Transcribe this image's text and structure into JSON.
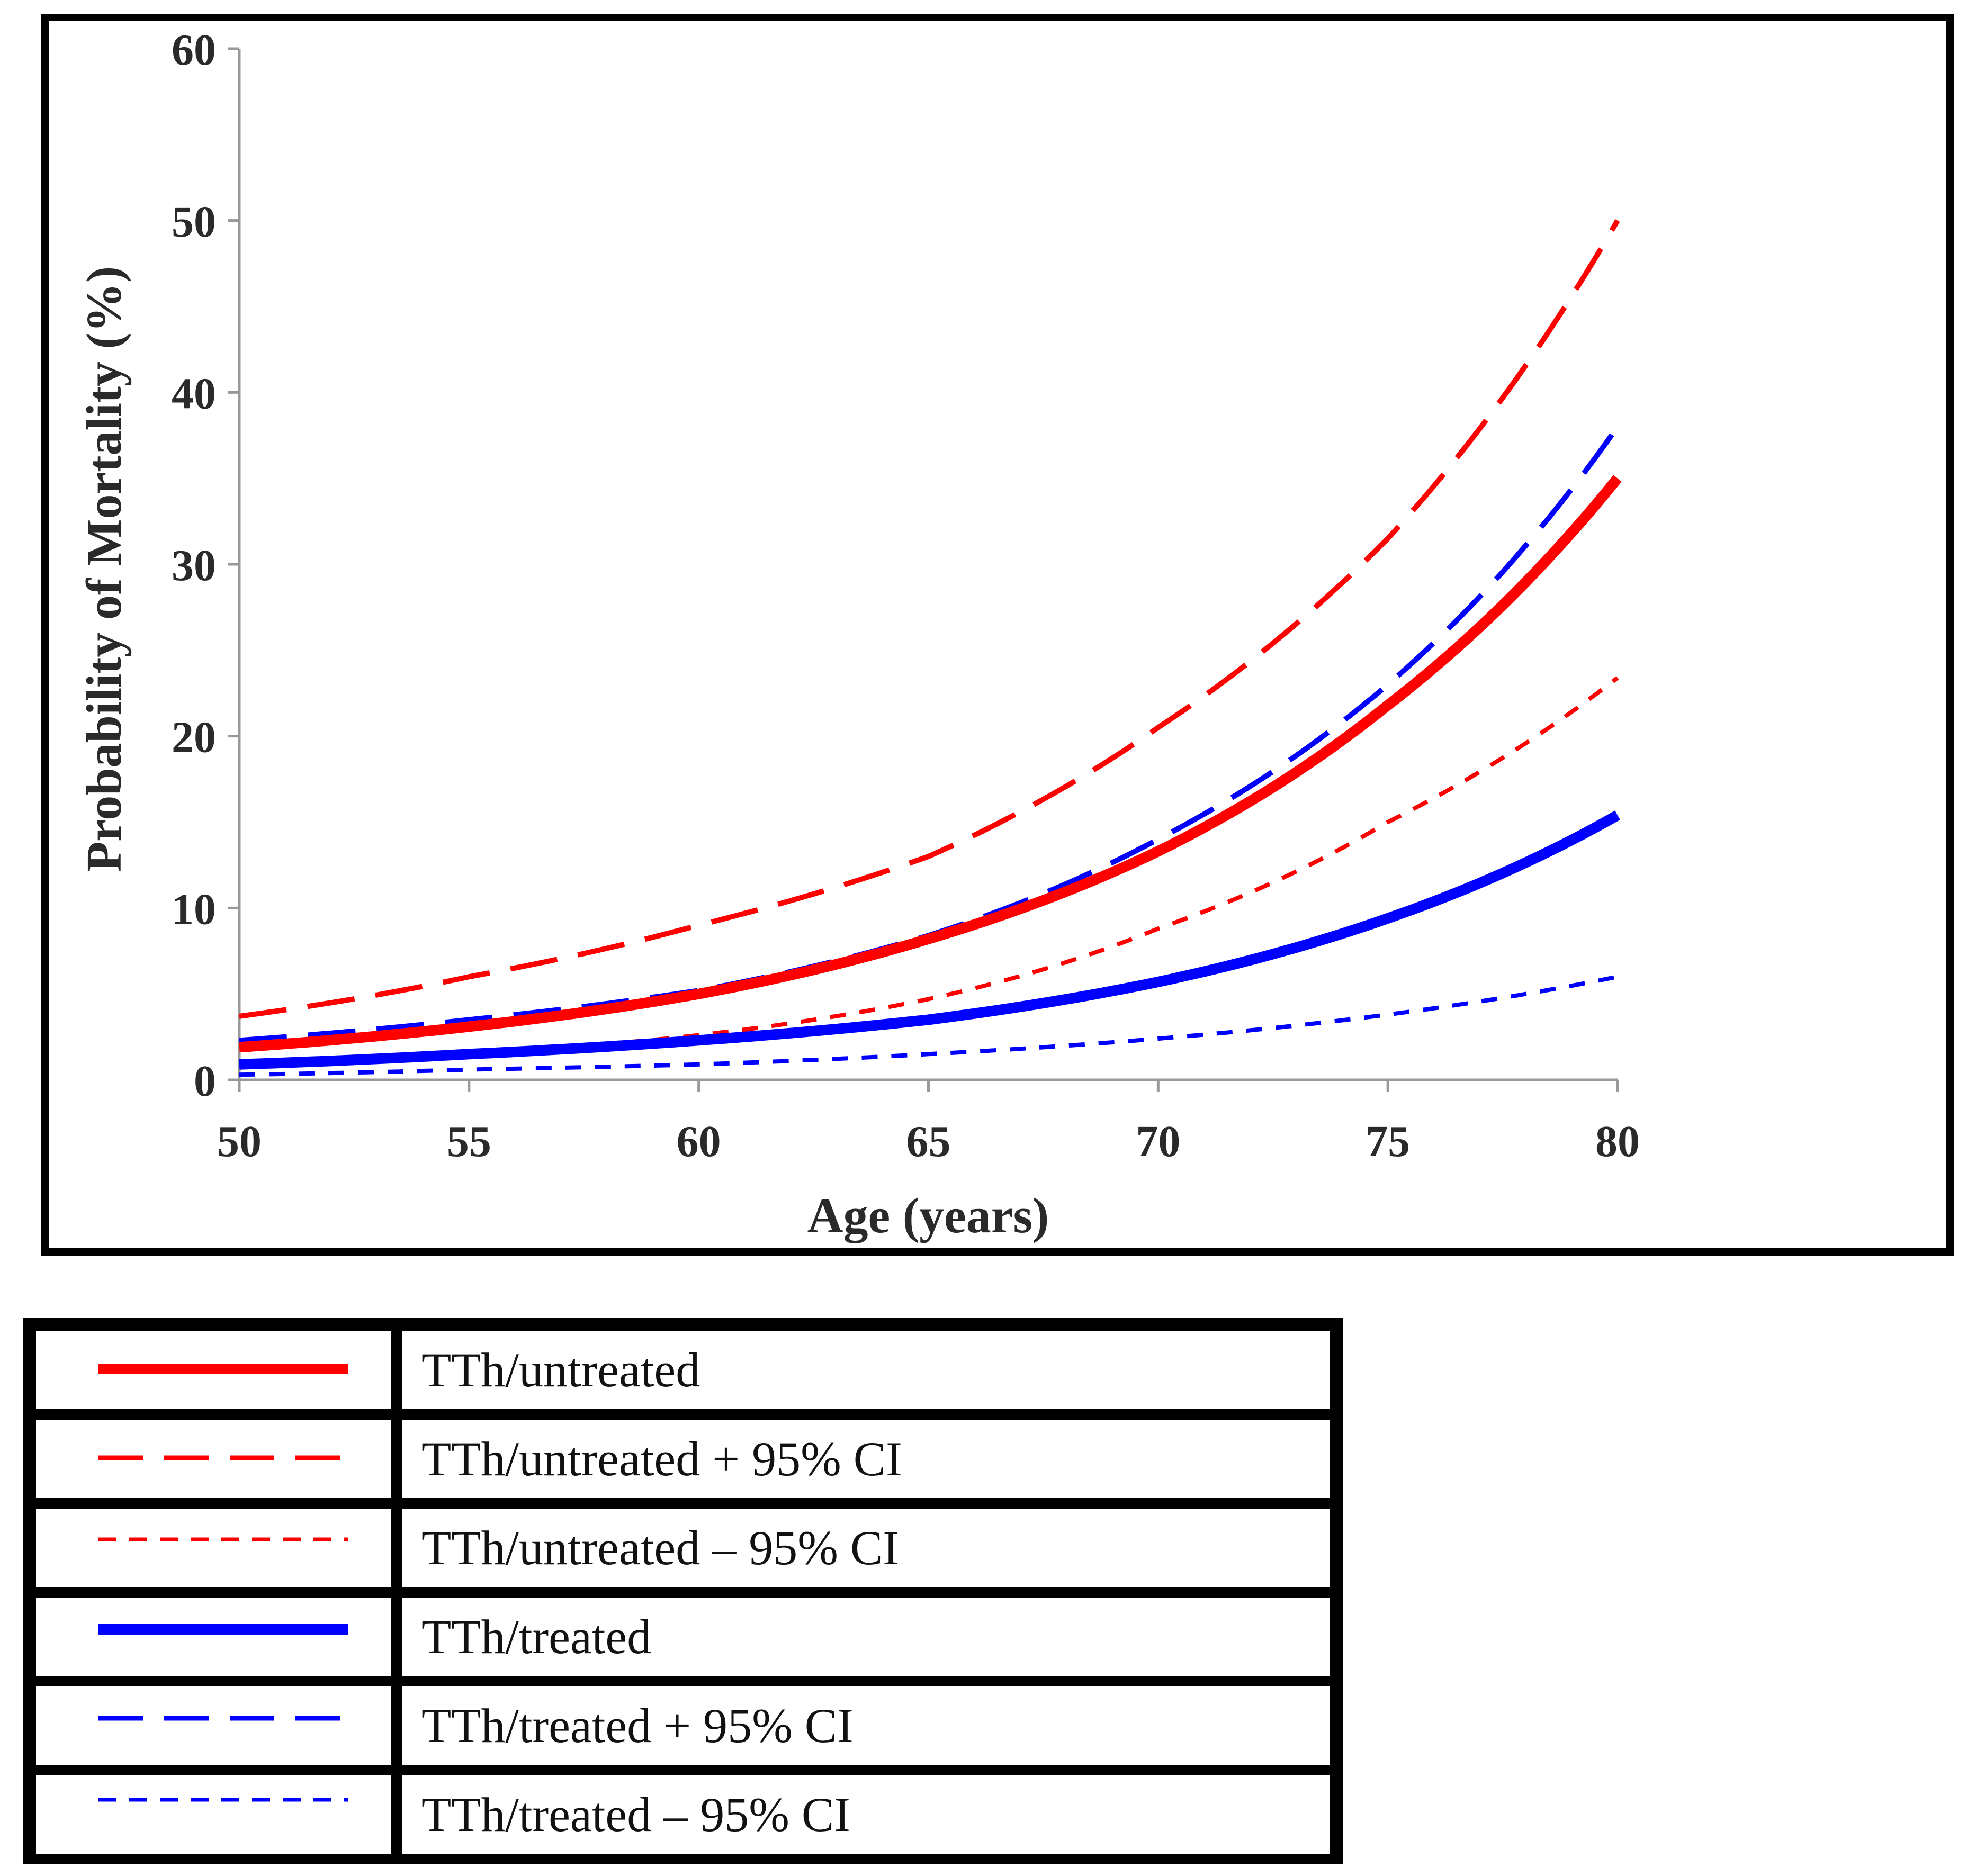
{
  "chart_data": {
    "type": "line",
    "title": "",
    "xlabel": "Age (years)",
    "ylabel": "Probability of Mortality (%)",
    "xlim": [
      50,
      80
    ],
    "ylim": [
      0,
      60
    ],
    "xticks": [
      "50",
      "55",
      "60",
      "65",
      "70",
      "75",
      "80"
    ],
    "yticks": [
      "0",
      "10",
      "20",
      "30",
      "40",
      "50",
      "60"
    ],
    "x": [
      50,
      55,
      60,
      65,
      70,
      75,
      80
    ],
    "series": [
      {
        "name": "TTh/untreated",
        "color": "#ff0000",
        "style": "solid",
        "values": [
          1.9,
          3.1,
          5.0,
          8.2,
          13.3,
          21.8,
          35.0
        ]
      },
      {
        "name": "TTh/untreated + 95% CI",
        "color": "#ff0000",
        "style": "long-dash",
        "values": [
          3.7,
          6.0,
          9.0,
          13.0,
          20.5,
          31.5,
          50.0
        ]
      },
      {
        "name": "TTh/untreated – 95% CI",
        "color": "#ff0000",
        "style": "short-dash",
        "values": [
          1.0,
          1.5,
          2.6,
          4.7,
          8.8,
          15.0,
          23.4
        ]
      },
      {
        "name": "TTh/treated",
        "color": "#0000ff",
        "style": "solid",
        "values": [
          0.9,
          1.5,
          2.3,
          3.5,
          5.7,
          9.4,
          15.4
        ]
      },
      {
        "name": "TTh/treated + 95% CI",
        "color": "#0000ff",
        "style": "long-dash",
        "values": [
          2.3,
          3.5,
          5.2,
          8.4,
          14.0,
          23.0,
          38.0
        ]
      },
      {
        "name": "TTh/treated – 95% CI",
        "color": "#0000ff",
        "style": "short-dash",
        "values": [
          0.3,
          0.6,
          0.9,
          1.5,
          2.4,
          3.8,
          6.0
        ]
      }
    ]
  },
  "legend": {
    "items": [
      {
        "label": "TTh/untreated"
      },
      {
        "label": "TTh/untreated + 95% CI"
      },
      {
        "label": "TTh/untreated – 95% CI"
      },
      {
        "label": "TTh/treated"
      },
      {
        "label": "TTh/treated + 95% CI"
      },
      {
        "label": "TTh/treated – 95% CI"
      }
    ]
  }
}
